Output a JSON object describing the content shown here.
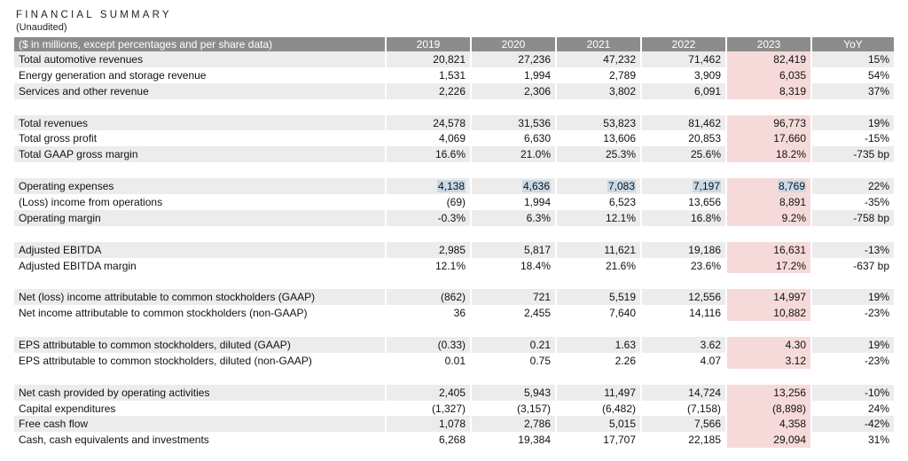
{
  "title": "FINANCIAL SUMMARY",
  "subtitle": "(Unaudited)",
  "header": {
    "label": "($ in millions, except percentages and per share data)",
    "years": [
      "2019",
      "2020",
      "2021",
      "2022",
      "2023"
    ],
    "yoy": "YoY"
  },
  "highlight_color": "#c9d9e8",
  "year_2023_color": "#f6dada",
  "groups": [
    [
      {
        "label": "Total automotive revenues",
        "values": [
          "20,821",
          "27,236",
          "47,232",
          "71,462",
          "82,419"
        ],
        "yoy": "15%"
      },
      {
        "label": "Energy generation and storage revenue",
        "values": [
          "1,531",
          "1,994",
          "2,789",
          "3,909",
          "6,035"
        ],
        "yoy": "54%"
      },
      {
        "label": "Services and other revenue",
        "values": [
          "2,226",
          "2,306",
          "3,802",
          "6,091",
          "8,319"
        ],
        "yoy": "37%"
      }
    ],
    [
      {
        "label": "Total revenues",
        "values": [
          "24,578",
          "31,536",
          "53,823",
          "81,462",
          "96,773"
        ],
        "yoy": "19%"
      },
      {
        "label": "Total gross profit",
        "values": [
          "4,069",
          "6,630",
          "13,606",
          "20,853",
          "17,660"
        ],
        "yoy": "-15%"
      },
      {
        "label": "Total GAAP gross margin",
        "values": [
          "16.6%",
          "21.0%",
          "25.3%",
          "25.6%",
          "18.2%"
        ],
        "yoy": "-735 bp"
      }
    ],
    [
      {
        "label": "Operating expenses",
        "values": [
          "4,138",
          "4,636",
          "7,083",
          "7,197",
          "8,769"
        ],
        "yoy": "22%",
        "highlighted": true
      },
      {
        "label": "(Loss) income from operations",
        "values": [
          "(69)",
          "1,994",
          "6,523",
          "13,656",
          "8,891"
        ],
        "yoy": "-35%"
      },
      {
        "label": "Operating margin",
        "values": [
          "-0.3%",
          "6.3%",
          "12.1%",
          "16.8%",
          "9.2%"
        ],
        "yoy": "-758 bp"
      }
    ],
    [
      {
        "label": "Adjusted EBITDA",
        "values": [
          "2,985",
          "5,817",
          "11,621",
          "19,186",
          "16,631"
        ],
        "yoy": "-13%"
      },
      {
        "label": "Adjusted EBITDA margin",
        "values": [
          "12.1%",
          "18.4%",
          "21.6%",
          "23.6%",
          "17.2%"
        ],
        "yoy": "-637 bp"
      }
    ],
    [
      {
        "label": "Net (loss) income attributable to common stockholders (GAAP)",
        "values": [
          "(862)",
          "721",
          "5,519",
          "12,556",
          "14,997"
        ],
        "yoy": "19%"
      },
      {
        "label": "Net income attributable to common stockholders (non-GAAP)",
        "values": [
          "36",
          "2,455",
          "7,640",
          "14,116",
          "10,882"
        ],
        "yoy": "-23%"
      }
    ],
    [
      {
        "label": "EPS attributable to common stockholders, diluted (GAAP)",
        "values": [
          "(0.33)",
          "0.21",
          "1.63",
          "3.62",
          "4.30"
        ],
        "yoy": "19%"
      },
      {
        "label": "EPS attributable to common stockholders, diluted (non-GAAP)",
        "values": [
          "0.01",
          "0.75",
          "2.26",
          "4.07",
          "3.12"
        ],
        "yoy": "-23%"
      }
    ],
    [
      {
        "label": "Net cash provided by operating activities",
        "values": [
          "2,405",
          "5,943",
          "11,497",
          "14,724",
          "13,256"
        ],
        "yoy": "-10%"
      },
      {
        "label": "Capital expenditures",
        "values": [
          "(1,327)",
          "(3,157)",
          "(6,482)",
          "(7,158)",
          "(8,898)"
        ],
        "yoy": "24%"
      },
      {
        "label": "Free cash flow",
        "values": [
          "1,078",
          "2,786",
          "5,015",
          "7,566",
          "4,358"
        ],
        "yoy": "-42%"
      },
      {
        "label": "Cash, cash equivalents and investments",
        "values": [
          "6,268",
          "19,384",
          "17,707",
          "22,185",
          "29,094"
        ],
        "yoy": "31%"
      }
    ]
  ]
}
